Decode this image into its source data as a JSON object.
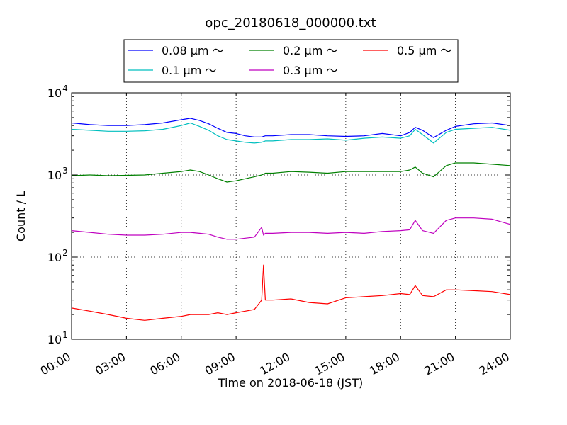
{
  "chart_data": {
    "type": "line",
    "title": "opc_20180618_000000.txt",
    "xlabel": "Time on 2018-06-18 (JST)",
    "ylabel": "Count / L",
    "yscale": "log",
    "ylim": [
      10,
      10000
    ],
    "xlim_hours": [
      0,
      24
    ],
    "grid": true,
    "legend_placement": "top-center (above plot)",
    "x_ticks": [
      "00:00",
      "03:00",
      "06:00",
      "09:00",
      "12:00",
      "15:00",
      "18:00",
      "21:00",
      "24:00"
    ],
    "y_ticks": [
      {
        "value": 10,
        "label": "10",
        "exp": "1"
      },
      {
        "value": 100,
        "label": "10",
        "exp": "2"
      },
      {
        "value": 1000,
        "label": "10",
        "exp": "3"
      },
      {
        "value": 10000,
        "label": "10",
        "exp": "4"
      }
    ],
    "x_hours": [
      0,
      1,
      2,
      3,
      4,
      5,
      6,
      6.5,
      7,
      7.5,
      8,
      8.5,
      9,
      9.5,
      10,
      10.4,
      10.5,
      10.6,
      11,
      12,
      13,
      14,
      15,
      16,
      17,
      18,
      18.5,
      18.8,
      19.2,
      19.8,
      20.5,
      21,
      22,
      23,
      24
    ],
    "series": [
      {
        "name": "0.08 μm ～",
        "color": "#0000ff",
        "values": [
          4300,
          4100,
          4000,
          4000,
          4100,
          4300,
          4700,
          4900,
          4600,
          4200,
          3700,
          3300,
          3200,
          3000,
          2900,
          2900,
          2950,
          3000,
          3000,
          3100,
          3100,
          3000,
          2950,
          3000,
          3200,
          3000,
          3300,
          3800,
          3500,
          2850,
          3500,
          3900,
          4200,
          4300,
          4000
        ]
      },
      {
        "name": "0.1 μm ～",
        "color": "#00bfbf",
        "values": [
          3600,
          3500,
          3400,
          3400,
          3450,
          3600,
          4000,
          4300,
          3900,
          3500,
          3000,
          2700,
          2600,
          2500,
          2450,
          2500,
          2550,
          2600,
          2600,
          2700,
          2700,
          2750,
          2650,
          2800,
          2900,
          2800,
          3000,
          3600,
          3100,
          2450,
          3300,
          3600,
          3700,
          3800,
          3500
        ]
      },
      {
        "name": "0.2 μm ～",
        "color": "#008000",
        "values": [
          980,
          1000,
          980,
          990,
          1000,
          1050,
          1100,
          1150,
          1100,
          1000,
          900,
          820,
          850,
          900,
          950,
          1000,
          1020,
          1050,
          1050,
          1100,
          1080,
          1050,
          1100,
          1100,
          1100,
          1100,
          1150,
          1250,
          1050,
          950,
          1300,
          1400,
          1400,
          1350,
          1300
        ]
      },
      {
        "name": "0.3 μm ～",
        "color": "#bf00bf",
        "values": [
          210,
          200,
          190,
          185,
          185,
          190,
          200,
          200,
          195,
          190,
          175,
          165,
          165,
          170,
          175,
          230,
          185,
          195,
          195,
          200,
          200,
          195,
          200,
          195,
          205,
          210,
          215,
          280,
          210,
          195,
          280,
          300,
          300,
          290,
          250
        ]
      },
      {
        "name": "0.5 μm ～",
        "color": "#ff0000",
        "values": [
          24,
          22,
          20,
          18,
          17,
          18,
          19,
          20,
          20,
          20,
          21,
          20,
          21,
          22,
          23,
          30,
          80,
          30,
          30,
          31,
          28,
          27,
          32,
          33,
          34,
          36,
          35,
          45,
          34,
          33,
          40,
          40,
          39,
          38,
          35
        ]
      }
    ]
  }
}
